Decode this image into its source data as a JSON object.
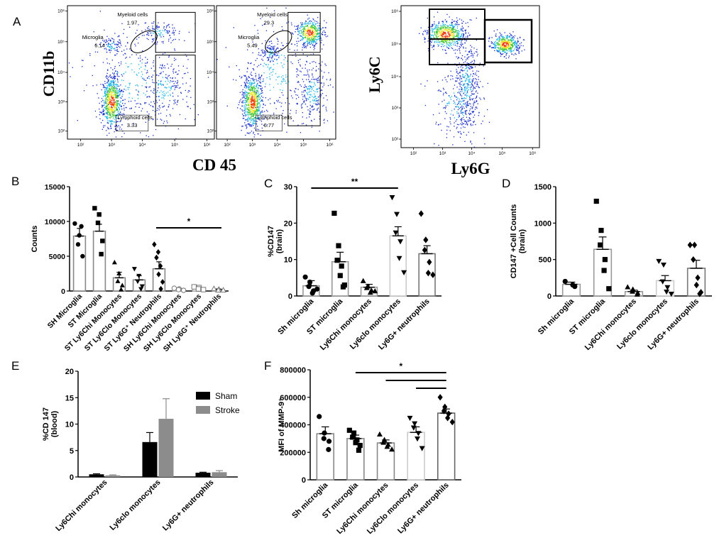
{
  "figure": {
    "panel_letters": [
      "A",
      "B",
      "C",
      "D",
      "E",
      "F"
    ]
  },
  "chart_data": [
    {
      "panel": "A",
      "type": "scatter",
      "subtype": "flow-cytometry-density",
      "plots": [
        {
          "gates": [
            {
              "name": "Myeloid cells",
              "value": "1.97"
            },
            {
              "name": "Microglia",
              "value": "6.14"
            },
            {
              "name": "Lymphoid cells",
              "value": "3.33"
            }
          ]
        },
        {
          "gates": [
            {
              "name": "Myeloid cells",
              "value": "29.3"
            },
            {
              "name": "Microglia",
              "value": "5.49"
            },
            {
              "name": "Lymphoid cells",
              "value": "6.77"
            }
          ]
        },
        {
          "gates": []
        }
      ],
      "xlabel_pair": "CD 45",
      "ylabel_pair": "CD11b",
      "xlabel_third": "Ly6G",
      "ylabel_third": "Ly6C",
      "tick_labels": [
        "10²",
        "10³",
        "10⁴",
        "10⁵",
        "10⁶"
      ],
      "log_scale": true,
      "density_colors": [
        "#1428c8",
        "#18b4e6",
        "#46c83c",
        "#f0e628",
        "#f03c14"
      ]
    },
    {
      "panel": "B",
      "type": "bar",
      "ylabel": "Counts",
      "ylim": [
        0,
        15000
      ],
      "yticks": [
        "0",
        "5000",
        "10000",
        "15000"
      ],
      "categories": [
        "SH Microglia",
        "ST Microglia",
        "ST Ly6Chi Monocytes",
        "ST Ly6Clo Monocytes",
        "ST Ly6G⁺ Neutrophils",
        "SH Ly6Chi Monocytes",
        "SH Ly6Clo Monocytes",
        "SH Ly6G⁺ Neutrophils"
      ],
      "values": [
        7900,
        8600,
        1900,
        1600,
        3200,
        300,
        400,
        200
      ],
      "errors": [
        1100,
        1000,
        800,
        600,
        1000,
        100,
        150,
        100
      ],
      "markers": [
        "circle",
        "square",
        "triangle",
        "triangle-down",
        "diamond",
        "circle-open",
        "square-open",
        "triangle-open"
      ],
      "points": [
        [
          9700,
          8000,
          6700,
          5000,
          9300
        ],
        [
          11900,
          11000,
          9800,
          7200,
          5300
        ],
        [
          4100,
          2500,
          1400,
          800,
          200
        ],
        [
          3200,
          2200,
          1400,
          700,
          300
        ],
        [
          6700,
          5600,
          4800,
          3600,
          2400,
          1300,
          300
        ],
        [
          400,
          300,
          200,
          100
        ],
        [
          600,
          500,
          300,
          200
        ],
        [
          300,
          200,
          100,
          100
        ]
      ],
      "significance": [
        {
          "from": 4,
          "to": 7,
          "label": "*"
        }
      ]
    },
    {
      "panel": "C",
      "type": "bar",
      "ylabel": "%CD147\n(brain)",
      "ylim": [
        0,
        30
      ],
      "yticks": [
        "0",
        "10",
        "20",
        "30"
      ],
      "categories": [
        "Sh microglia",
        "ST microglia",
        "Ly6Chi monocytes",
        "Ly6clo monocytes",
        "Ly6G+ neutrophils"
      ],
      "values": [
        2.8,
        9.4,
        2.4,
        16.5,
        11.6
      ],
      "errors": [
        1.4,
        2.6,
        0.8,
        2.5,
        2.2
      ],
      "markers": [
        "circle",
        "square",
        "triangle",
        "triangle-down",
        "diamond"
      ],
      "points": [
        [
          5.2,
          3.8,
          2.6,
          1.4,
          0.8,
          1.9
        ],
        [
          22.7,
          13.8,
          9.8,
          8.2,
          5.6,
          3.0,
          2.5
        ],
        [
          4.1,
          2.6,
          2.2,
          1.5,
          0.9,
          1.3
        ],
        [
          27.1,
          22.5,
          17.4,
          15.0,
          10.4,
          6.5
        ],
        [
          22.6,
          15.4,
          12.6,
          9.3,
          6.3,
          5.8
        ]
      ],
      "significance": [
        {
          "from": 0,
          "to": 3,
          "label": "**"
        }
      ]
    },
    {
      "panel": "D",
      "type": "bar",
      "ylabel": "CD147 +Cell Counts\n(brain)",
      "ylim": [
        0,
        1500
      ],
      "yticks": [
        "0",
        "500",
        "1000",
        "1500"
      ],
      "categories": [
        "Sh microglia",
        "ST microglia",
        "Ly6Chi monocytes",
        "Ly6clo monocytes",
        "Ly6G+ neutrophils"
      ],
      "values": [
        160,
        640,
        60,
        210,
        380
      ],
      "errors": [
        30,
        170,
        20,
        70,
        110
      ],
      "markers": [
        "circle",
        "square",
        "triangle",
        "triangle-down",
        "diamond"
      ],
      "points": [
        [
          200,
          150,
          130
        ],
        [
          1300,
          900,
          700,
          500,
          350,
          100
        ],
        [
          120,
          90,
          60,
          40,
          20
        ],
        [
          480,
          430,
          200,
          120,
          60,
          30
        ],
        [
          700,
          700,
          500,
          250,
          150,
          50,
          30
        ]
      ],
      "significance": []
    },
    {
      "panel": "E",
      "type": "bar",
      "ylabel": "%CD 147\n(blood)",
      "ylim": [
        0,
        20
      ],
      "yticks": [
        "0",
        "5",
        "10",
        "15",
        "20"
      ],
      "categories": [
        "Ly6Chi monocytes",
        "Ly6clo monocytes",
        "Ly6G+ neutrophils"
      ],
      "series": [
        {
          "name": "Sham",
          "color": "#000000",
          "values": [
            0.5,
            6.6,
            0.8
          ],
          "errors": [
            0.1,
            1.8,
            0.1
          ]
        },
        {
          "name": "Stroke",
          "color": "#8c8c8c",
          "values": [
            0.3,
            11.0,
            0.9
          ],
          "errors": [
            0.1,
            3.8,
            0.3
          ]
        }
      ],
      "legend": "top-right"
    },
    {
      "panel": "F",
      "type": "bar",
      "ylabel": "MFI of MMP-9⁺",
      "ylim": [
        0,
        800000
      ],
      "yticks": [
        "0",
        "200000",
        "400000",
        "600000",
        "800000"
      ],
      "categories": [
        "Sh microglia",
        "ST microglia",
        "Ly6Chi monocytes",
        "Ly6Clo monocytes",
        "Ly6G+ neutrophils"
      ],
      "values": [
        335000,
        300000,
        268000,
        345000,
        485000
      ],
      "errors": [
        50000,
        25000,
        22000,
        40000,
        30000
      ],
      "markers": [
        "circle",
        "square",
        "triangle",
        "triangle-down",
        "diamond"
      ],
      "points": [
        [
          460000,
          340000,
          300000,
          280000,
          220000
        ],
        [
          360000,
          340000,
          310000,
          290000,
          270000,
          250000,
          215000
        ],
        [
          330000,
          290000,
          270000,
          255000,
          240000,
          220000
        ],
        [
          450000,
          410000,
          380000,
          340000,
          300000,
          230000
        ],
        [
          600000,
          530000,
          500000,
          480000,
          450000,
          420000
        ]
      ],
      "significance": [
        {
          "from": 1,
          "to": 4,
          "label": "*"
        },
        {
          "from": 2,
          "to": 4,
          "label": ""
        },
        {
          "from": 3,
          "to": 4,
          "label": ""
        }
      ]
    }
  ]
}
